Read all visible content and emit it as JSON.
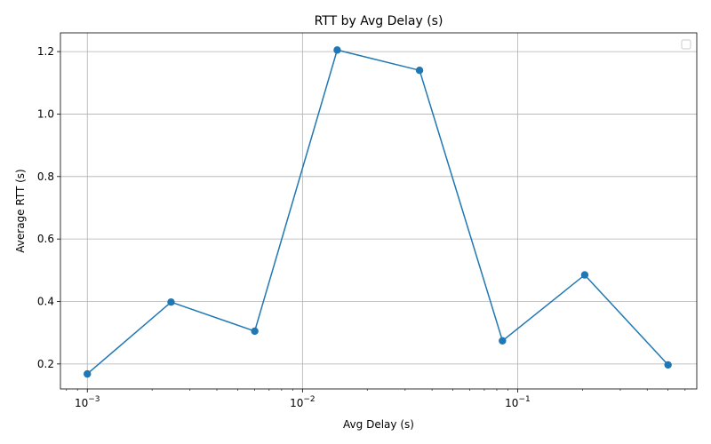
{
  "chart_data": {
    "type": "line",
    "title": "RTT by Avg Delay (s)",
    "xlabel": "Avg Delay (s)",
    "ylabel": "Average RTT (s)",
    "xscale": "log",
    "xlim": [
      0.00075,
      0.68
    ],
    "ylim": [
      0.12,
      1.26
    ],
    "grid": true,
    "legend": "top-right (empty)",
    "x_ticks": [
      {
        "value": 0.001,
        "base": "10",
        "exp": "−3"
      },
      {
        "value": 0.01,
        "base": "10",
        "exp": "−2"
      },
      {
        "value": 0.1,
        "base": "10",
        "exp": "−1"
      }
    ],
    "y_ticks": [
      {
        "value": 0.2,
        "label": "0.2"
      },
      {
        "value": 0.4,
        "label": "0.4"
      },
      {
        "value": 0.6,
        "label": "0.6"
      },
      {
        "value": 0.8,
        "label": "0.8"
      },
      {
        "value": 1.0,
        "label": "1.0"
      },
      {
        "value": 1.2,
        "label": "1.2"
      }
    ],
    "series": [
      {
        "color": "#1f77b4",
        "marker": "circle",
        "x": [
          0.001,
          0.00245,
          0.006,
          0.0145,
          0.035,
          0.085,
          0.205,
          0.5
        ],
        "y": [
          0.168,
          0.398,
          0.305,
          1.205,
          1.14,
          0.274,
          0.485,
          0.197
        ]
      }
    ]
  }
}
